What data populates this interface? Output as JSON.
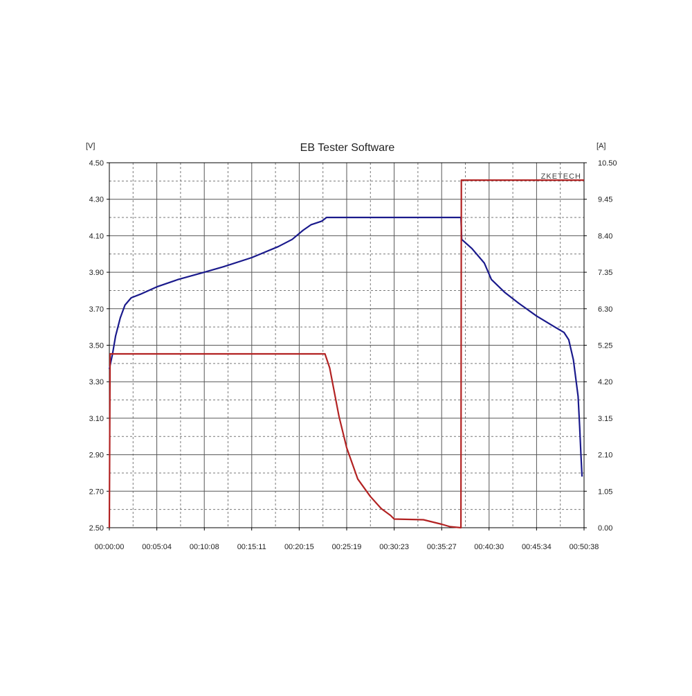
{
  "chart_data": {
    "type": "line",
    "title": "EB Tester Software",
    "brand": "ZKETECH",
    "left_unit": "[V]",
    "right_unit": "[A]",
    "grid": true,
    "x_tick_labels": [
      "00:00:00",
      "00:05:04",
      "00:10:08",
      "00:15:11",
      "00:20:15",
      "00:25:19",
      "00:30:23",
      "00:35:27",
      "00:40:30",
      "00:45:34",
      "00:50:38"
    ],
    "x_range_seconds": [
      0,
      3038
    ],
    "left_axis": {
      "range": [
        2.5,
        4.5
      ],
      "ticks": [
        "2.50",
        "2.70",
        "2.90",
        "3.10",
        "3.30",
        "3.50",
        "3.70",
        "3.90",
        "4.10",
        "4.30",
        "4.50"
      ]
    },
    "right_axis": {
      "range": [
        0,
        10.5
      ],
      "ticks": [
        "0.00",
        "1.05",
        "2.10",
        "3.15",
        "4.20",
        "5.25",
        "6.30",
        "7.35",
        "8.40",
        "9.45",
        "10.50"
      ]
    },
    "series": [
      {
        "axis": "left",
        "color": "#1a1a8c",
        "points": [
          [
            "00:00:00",
            3.37
          ],
          [
            "00:00:20",
            3.45
          ],
          [
            "00:00:40",
            3.55
          ],
          [
            "00:01:10",
            3.65
          ],
          [
            "00:01:40",
            3.72
          ],
          [
            "00:02:20",
            3.76
          ],
          [
            "00:03:20",
            3.78
          ],
          [
            "00:05:04",
            3.82
          ],
          [
            "00:07:20",
            3.86
          ],
          [
            "00:10:08",
            3.9
          ],
          [
            "00:12:10",
            3.93
          ],
          [
            "00:15:11",
            3.98
          ],
          [
            "00:18:00",
            4.04
          ],
          [
            "00:19:30",
            4.08
          ],
          [
            "00:20:40",
            4.13
          ],
          [
            "00:21:30",
            4.16
          ],
          [
            "00:22:40",
            4.18
          ],
          [
            "00:23:10",
            4.2
          ],
          [
            "00:37:30",
            4.2
          ],
          [
            "00:37:35",
            4.08
          ],
          [
            "00:38:40",
            4.03
          ],
          [
            "00:40:00",
            3.95
          ],
          [
            "00:40:45",
            3.86
          ],
          [
            "00:42:10",
            3.79
          ],
          [
            "00:43:40",
            3.73
          ],
          [
            "00:45:34",
            3.66
          ],
          [
            "00:47:30",
            3.6
          ],
          [
            "00:48:30",
            3.57
          ],
          [
            "00:49:00",
            3.53
          ],
          [
            "00:49:30",
            3.42
          ],
          [
            "00:50:00",
            3.22
          ],
          [
            "00:50:10",
            3.05
          ],
          [
            "00:50:18",
            2.9
          ],
          [
            "00:50:25",
            2.78
          ]
        ]
      },
      {
        "axis": "right",
        "color": "#b22222",
        "points": [
          [
            "00:00:00",
            0.0
          ],
          [
            "00:00:05",
            5.0
          ],
          [
            "00:23:00",
            5.0
          ],
          [
            "00:23:30",
            4.6
          ],
          [
            "00:24:30",
            3.2
          ],
          [
            "00:25:19",
            2.3
          ],
          [
            "00:26:30",
            1.4
          ],
          [
            "00:27:50",
            0.9
          ],
          [
            "00:29:00",
            0.55
          ],
          [
            "00:30:00",
            0.35
          ],
          [
            "00:30:23",
            0.25
          ],
          [
            "00:33:30",
            0.23
          ],
          [
            "00:35:27",
            0.1
          ],
          [
            "00:36:20",
            0.03
          ],
          [
            "00:37:30",
            0.0
          ],
          [
            "00:37:33",
            10.0
          ],
          [
            "00:50:38",
            10.0
          ]
        ]
      }
    ]
  }
}
